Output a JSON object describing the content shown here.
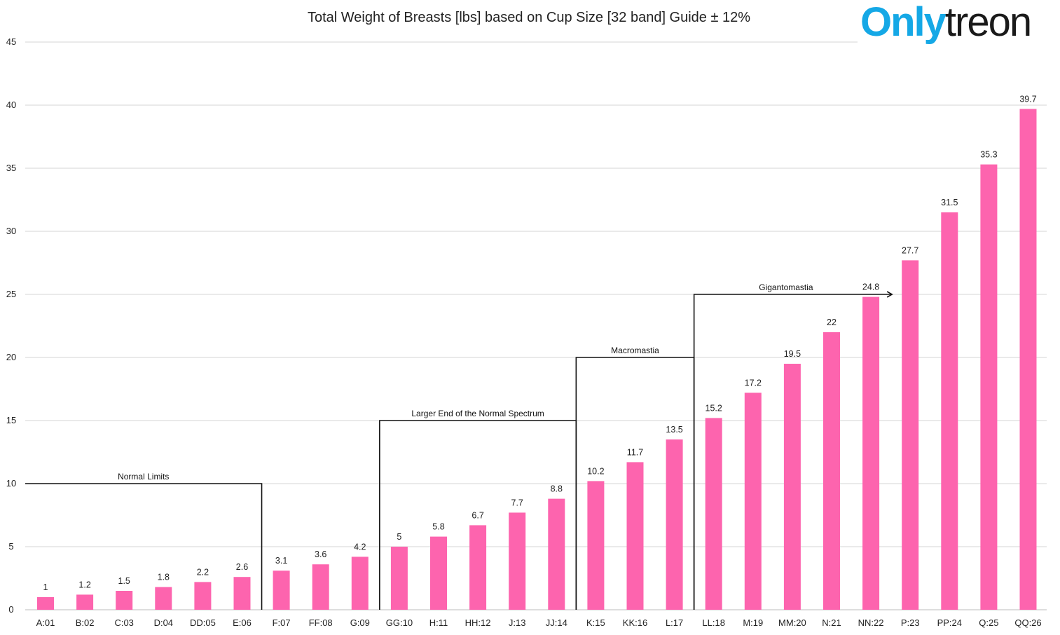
{
  "watermark": {
    "part1": "Only",
    "part2": "treon",
    "color1": "#15a8e6",
    "color2": "#1a1a1a"
  },
  "chart_data": {
    "type": "bar",
    "title": "Total Weight of Breasts [lbs] based on Cup Size [32 band] Guide ± 12%",
    "xlabel": "",
    "ylabel": "",
    "ylim": [
      0,
      45
    ],
    "yticks": [
      0,
      5,
      10,
      15,
      20,
      25,
      30,
      35,
      40,
      45
    ],
    "grid": true,
    "bar_color": "#fd64ae",
    "categories": [
      "A:01",
      "B:02",
      "C:03",
      "D:04",
      "DD:05",
      "E:06",
      "F:07",
      "FF:08",
      "G:09",
      "GG:10",
      "H:11",
      "HH:12",
      "J:13",
      "JJ:14",
      "K:15",
      "KK:16",
      "L:17",
      "LL:18",
      "M:19",
      "MM:20",
      "N:21",
      "NN:22",
      "P:23",
      "PP:24",
      "Q:25",
      "QQ:26"
    ],
    "values": [
      1,
      1.2,
      1.5,
      1.8,
      2.2,
      2.6,
      3.1,
      3.6,
      4.2,
      5,
      5.8,
      6.7,
      7.7,
      8.8,
      10.2,
      11.7,
      13.5,
      15.2,
      17.2,
      19.5,
      22,
      24.8,
      27.7,
      31.5,
      35.3,
      39.7
    ],
    "annotations": [
      {
        "text": "Normal Limits",
        "y": 10,
        "from_category": 0,
        "to_category": 5,
        "arrow": false
      },
      {
        "text": "Larger End of the Normal Spectrum",
        "y": 15,
        "from_category": 9,
        "to_category": 13,
        "arrow": false
      },
      {
        "text": "Macromastia",
        "y": 20,
        "from_category": 14,
        "to_category": 16,
        "arrow": false
      },
      {
        "text": "Gigantomastia",
        "y": 25,
        "from_category": 17,
        "to_category": 21,
        "arrow": true
      }
    ]
  }
}
